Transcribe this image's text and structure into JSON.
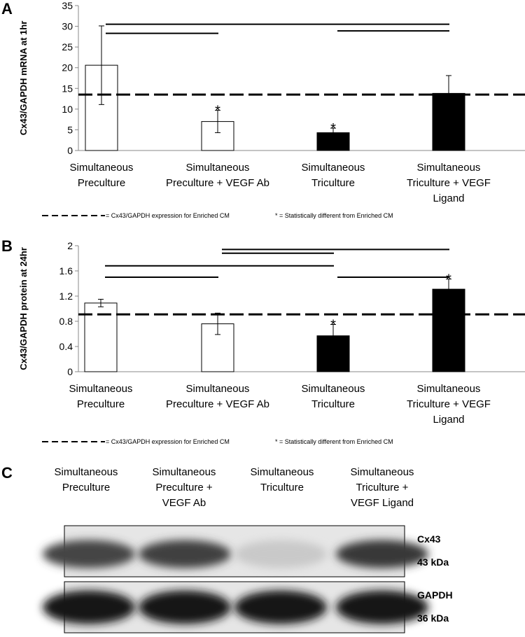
{
  "colors": {
    "open_bar": "#ffffff",
    "filled_bar": "#000000",
    "line": "#000000",
    "axis": "#888888"
  },
  "chart_data": [
    {
      "panel": "A",
      "type": "bar",
      "categories": [
        [
          "Simultaneous",
          "Preculture"
        ],
        [
          "Simultaneous",
          "Preculture + VEGF Ab"
        ],
        [
          "Simultaneous",
          "Triculture"
        ],
        [
          "Simultaneous",
          "Triculture + VEGF",
          "Ligand"
        ]
      ],
      "values": [
        20.6,
        7.0,
        4.3,
        13.8
      ],
      "errors": [
        9.5,
        2.7,
        1.1,
        4.3
      ],
      "fills": [
        "open",
        "open",
        "filled",
        "filled"
      ],
      "stars": [
        false,
        true,
        true,
        false
      ],
      "reference_line": 13.5,
      "significance_bars": [
        {
          "from": 0,
          "to": 3,
          "y": 30.5
        },
        {
          "from": 0,
          "to": 1,
          "y": 28.3
        },
        {
          "from": 2,
          "to": 3,
          "y": 28.9
        }
      ],
      "ylabel": "Cx43/GAPDH mRNA at 1hr",
      "ylim": [
        0,
        35
      ],
      "yticks": [
        "0",
        "5",
        "10",
        "15",
        "20",
        "25",
        "30",
        "35"
      ],
      "legend": {
        "dashed": "= Cx43/GAPDH expression for Enriched CM",
        "star": "*  =  Statistically different from Enriched CM"
      }
    },
    {
      "panel": "B",
      "type": "bar",
      "categories": [
        [
          "Simultaneous",
          "Preculture"
        ],
        [
          "Simultaneous",
          "Preculture + VEGF Ab"
        ],
        [
          "Simultaneous",
          "Triculture"
        ],
        [
          "Simultaneous",
          "Triculture + VEGF",
          "Ligand"
        ]
      ],
      "values": [
        1.09,
        0.76,
        0.57,
        1.31
      ],
      "errors": [
        0.06,
        0.17,
        0.18,
        0.16
      ],
      "fills": [
        "open",
        "open",
        "filled",
        "filled"
      ],
      "stars": [
        false,
        false,
        true,
        true
      ],
      "reference_line": 0.91,
      "significance_bars": [
        {
          "from": 1,
          "to": 3,
          "y": 1.94
        },
        {
          "from": 1,
          "to": 2,
          "y": 1.88
        },
        {
          "from": 0,
          "to": 2,
          "y": 1.68
        },
        {
          "from": 0,
          "to": 1,
          "y": 1.5
        },
        {
          "from": 2,
          "to": 3,
          "y": 1.5
        }
      ],
      "ylabel": "Cx43/GAPDH protein at 24hr",
      "ylim": [
        0,
        2
      ],
      "yticks": [
        "0",
        "0.4",
        "0.8",
        "1.2",
        "1.6",
        "2"
      ],
      "legend": {
        "dashed": "= Cx43/GAPDH expression for Enriched CM",
        "star": "*  =  Statistically different from Enriched CM"
      }
    }
  ],
  "blot": {
    "panel": "C",
    "lanes": [
      [
        "Simultaneous",
        "Preculture"
      ],
      [
        "Simultaneous",
        "Preculture +",
        "VEGF Ab"
      ],
      [
        "Simultaneous",
        "Triculture"
      ],
      [
        "Simultaneous",
        "Triculture +",
        "VEGF Ligand"
      ]
    ],
    "rows": [
      {
        "name": "Cx43",
        "size": "43 kDa",
        "intensities": [
          0.78,
          0.8,
          0.12,
          0.85
        ]
      },
      {
        "name": "GAPDH",
        "size": "36 kDa",
        "intensities": [
          1.0,
          1.0,
          1.0,
          1.0
        ]
      }
    ]
  }
}
